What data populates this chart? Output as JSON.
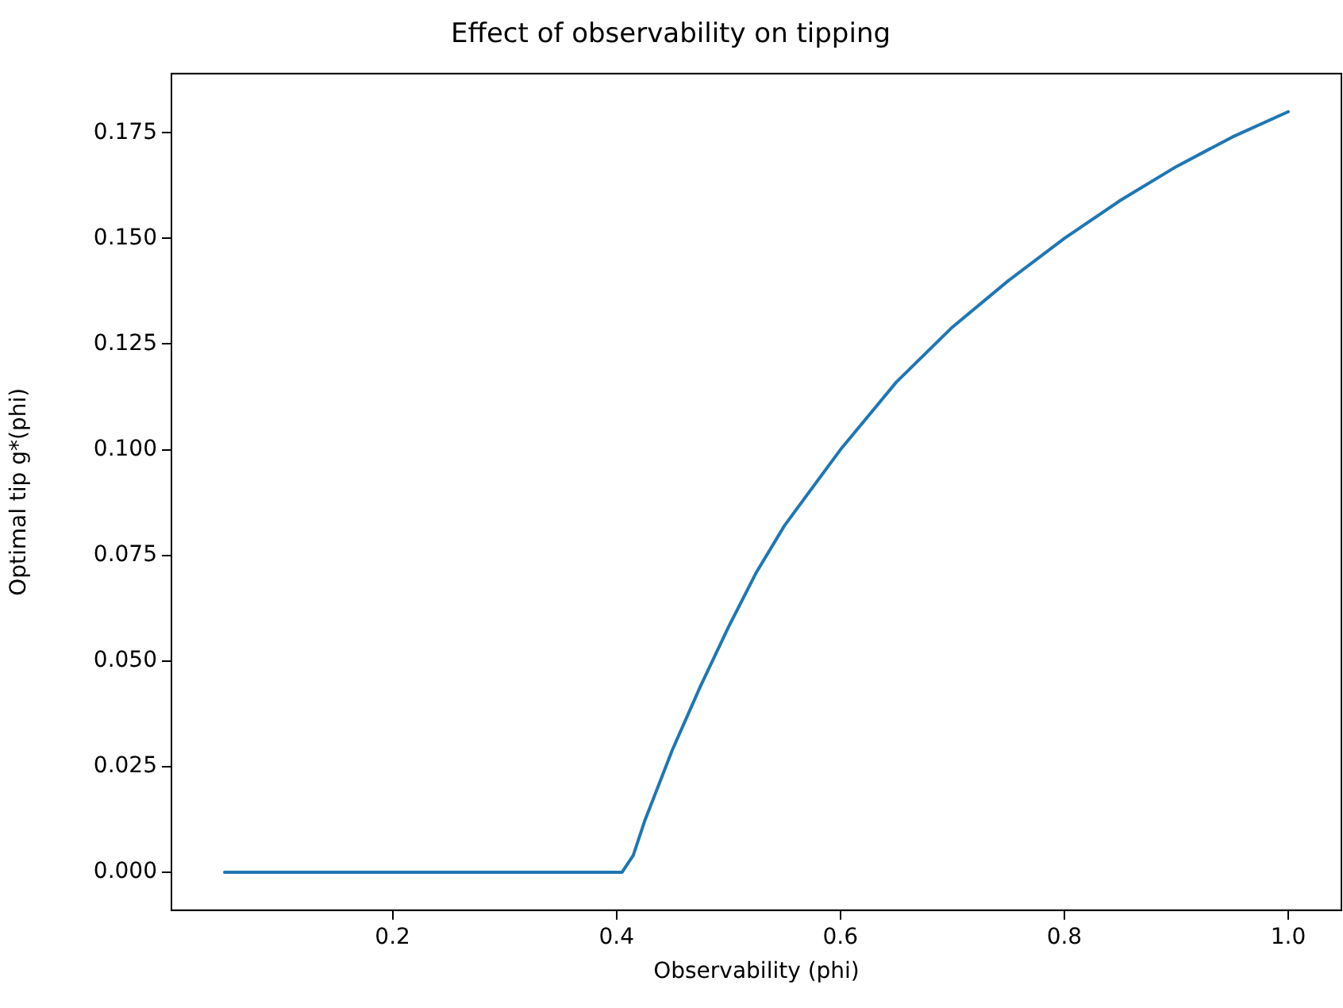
{
  "chart_data": {
    "type": "line",
    "title": "Effect of observability on tipping",
    "xlabel": "Observability (phi)",
    "ylabel": "Optimal tip g*(phi)",
    "x": [
      0.05,
      0.1,
      0.2,
      0.3,
      0.4,
      0.405,
      0.415,
      0.425,
      0.45,
      0.475,
      0.5,
      0.525,
      0.55,
      0.6,
      0.65,
      0.7,
      0.75,
      0.8,
      0.85,
      0.9,
      0.95,
      1.0
    ],
    "series": [
      {
        "color": "#1f77b4",
        "values": [
          0,
          0,
          0,
          0,
          0,
          0,
          0.004,
          0.012,
          0.029,
          0.044,
          0.058,
          0.071,
          0.082,
          0.1,
          0.116,
          0.129,
          0.14,
          0.15,
          0.159,
          0.167,
          0.174,
          0.18
        ]
      }
    ],
    "xlim": [
      0.0025,
      1.0475
    ],
    "xticks": [
      0.2,
      0.4,
      0.6,
      0.8,
      {
        "value": 1,
        "label": "1.0"
      }
    ],
    "ylim": [
      -0.009,
      0.189
    ],
    "yticks": [
      {
        "value": 0,
        "label": "0.000"
      },
      0.025,
      {
        "value": 0.05,
        "label": "0.050"
      },
      0.075,
      {
        "value": 0.1,
        "label": "0.100"
      },
      0.125,
      {
        "value": 0.15,
        "label": "0.150"
      },
      0.175
    ],
    "grid": false,
    "legend": false,
    "marker": "none",
    "line_style": "solid"
  }
}
